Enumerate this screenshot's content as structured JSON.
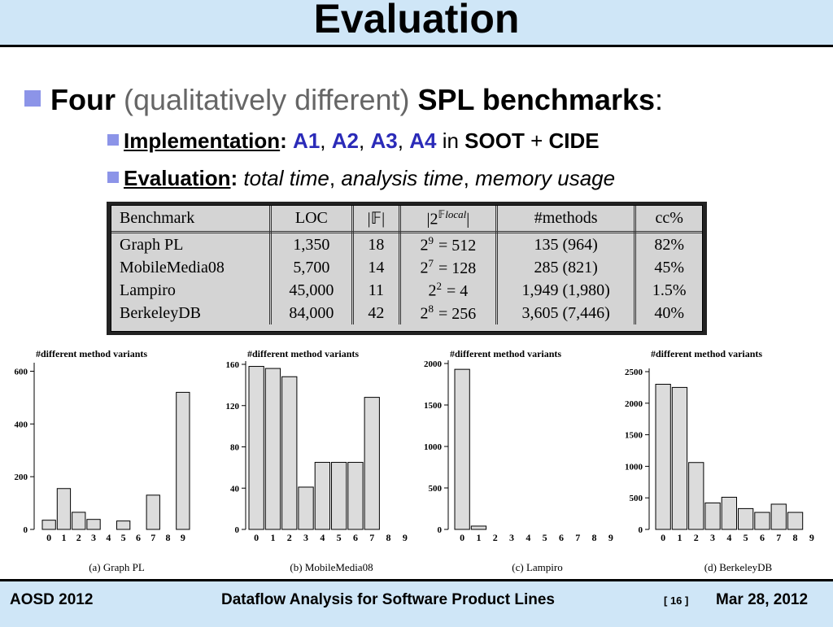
{
  "slide": {
    "title": "Evaluation",
    "bullet1": {
      "four": "Four",
      "qualitative": "(qualitatively different)",
      "spl": "SPL benchmarks",
      "colon": ":"
    },
    "bullet2": {
      "label": "Implementation",
      "colon": ":",
      "a1": "A1",
      "comma1": ",",
      "a2": "A2",
      "comma2": ",",
      "a3": "A3",
      "comma3": ",",
      "a4": "A4",
      "in": "in",
      "soot": "SOOT",
      "plus": "+",
      "cide": "CIDE"
    },
    "bullet3": {
      "label": "Evaluation",
      "colon": ":",
      "total_time": "total time",
      "comma1": ",",
      "analysis_time": "analysis time",
      "comma2": ",",
      "memory_usage": "memory usage"
    }
  },
  "table": {
    "headers": [
      "Benchmark",
      "LOC",
      "|𝔽|",
      "|2^𝔽local|",
      "#methods",
      "cc%"
    ],
    "header_pow_base": "2",
    "header_pow_exp": "𝔽",
    "header_pow_sub": "local",
    "rows": [
      {
        "benchmark": "Graph PL",
        "loc": "1,350",
        "f": "18",
        "pow_exp": "9",
        "pow_val": "= 512",
        "methods": "135 (964)",
        "cc": "82%"
      },
      {
        "benchmark": "MobileMedia08",
        "loc": "5,700",
        "f": "14",
        "pow_exp": "7",
        "pow_val": "= 128",
        "methods": "285 (821)",
        "cc": "45%"
      },
      {
        "benchmark": "Lampiro",
        "loc": "45,000",
        "f": "11",
        "pow_exp": "2",
        "pow_val": "= 4",
        "methods": "1,949 (1,980)",
        "cc": "1.5%"
      },
      {
        "benchmark": "BerkeleyDB",
        "loc": "84,000",
        "f": "42",
        "pow_exp": "8",
        "pow_val": "= 256",
        "methods": "3,605 (7,446)",
        "cc": "40%"
      }
    ]
  },
  "chart_data": [
    {
      "type": "bar",
      "title": "#different method variants",
      "caption": "(a) Graph PL",
      "categories": [
        "0",
        "1",
        "2",
        "3",
        "4",
        "5",
        "6",
        "7",
        "8",
        "9"
      ],
      "values": [
        35,
        155,
        65,
        38,
        0,
        32,
        0,
        130,
        0,
        520
      ],
      "yticks": [
        0,
        200,
        400,
        600
      ],
      "ylim": [
        0,
        620
      ]
    },
    {
      "type": "bar",
      "title": "#different method variants",
      "caption": "(b) MobileMedia08",
      "categories": [
        "0",
        "1",
        "2",
        "3",
        "4",
        "5",
        "6",
        "7",
        "8",
        "9"
      ],
      "values": [
        158,
        156,
        148,
        41,
        65,
        65,
        65,
        128,
        0,
        0
      ],
      "yticks": [
        0,
        40,
        80,
        120,
        160
      ],
      "ylim": [
        0,
        160
      ]
    },
    {
      "type": "bar",
      "title": "#different method variants",
      "caption": "(c) Lampiro",
      "categories": [
        "0",
        "1",
        "2",
        "3",
        "4",
        "5",
        "6",
        "7",
        "8",
        "9"
      ],
      "values": [
        1930,
        40,
        0,
        0,
        0,
        0,
        0,
        0,
        0,
        0
      ],
      "yticks": [
        0,
        500,
        1000,
        1500,
        2000
      ],
      "ylim": [
        0,
        2000
      ]
    },
    {
      "type": "bar",
      "title": "#different method variants",
      "caption": "(d) BerkeleyDB",
      "categories": [
        "0",
        "1",
        "2",
        "3",
        "4",
        "5",
        "6",
        "7",
        "8",
        "9"
      ],
      "values": [
        2300,
        2250,
        1060,
        420,
        510,
        330,
        270,
        400,
        270,
        0
      ],
      "yticks": [
        0,
        500,
        1000,
        1500,
        2000,
        2500
      ],
      "ylim": [
        0,
        2500
      ]
    }
  ],
  "footer": {
    "left": "AOSD 2012",
    "center": "Dataflow Analysis for Software Product Lines",
    "page": "[ 16 ]",
    "right": "Mar 28, 2012"
  },
  "colors": {
    "title_bar": "#cfe6f7",
    "bullet_square": "#8c94e8",
    "accent_blue": "#2b2bb8",
    "bar_fill": "#dcdcdc"
  }
}
